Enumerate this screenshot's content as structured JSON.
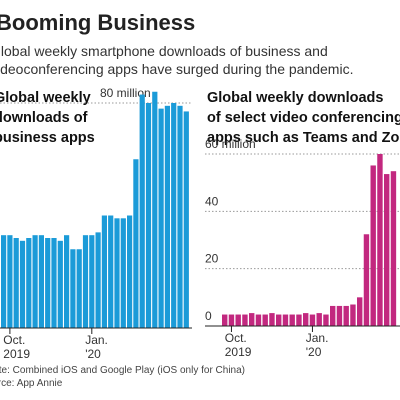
{
  "title": "Booming Business",
  "subtitle": [
    "Global weekly smartphone downloads of business and",
    "videoconferencing apps have surged during the pandemic."
  ],
  "note": "Note: Combined iOS and Google Play (iOS only for China)",
  "source": "Source: App Annie",
  "chart_data": [
    {
      "type": "bar",
      "title": [
        "Global weekly",
        "downloads of",
        "business apps"
      ],
      "color": "#1b9bd8",
      "categories": [
        null,
        "Oct.",
        null,
        null,
        null,
        null,
        null,
        null,
        null,
        null,
        null,
        null,
        null,
        null,
        "Jan.",
        null,
        null,
        null,
        null,
        null,
        null,
        null,
        null,
        null,
        null,
        null,
        null,
        null,
        null,
        null
      ],
      "category_years": [
        null,
        "2019",
        null,
        null,
        null,
        null,
        null,
        null,
        null,
        null,
        null,
        null,
        null,
        null,
        "'20",
        null,
        null,
        null,
        null,
        null,
        null,
        null,
        null,
        null,
        null,
        null,
        null,
        null,
        null,
        null
      ],
      "values": [
        33,
        33,
        32,
        31,
        32,
        33,
        33,
        32,
        32,
        31,
        33,
        28,
        28,
        33,
        33,
        34,
        40,
        40,
        39,
        39,
        40,
        60,
        83,
        80,
        84,
        78,
        79,
        80,
        79,
        77
      ],
      "ylim": [
        0,
        80
      ],
      "yticks": [
        {
          "value": 80,
          "label": "80 million"
        }
      ],
      "grid": true
    },
    {
      "type": "bar",
      "title": [
        "Global weekly downloads",
        "of select video conferencing",
        "apps such as Teams and Zoom"
      ],
      "color": "#c2287f",
      "categories": [
        null,
        "Oct.",
        null,
        null,
        null,
        null,
        null,
        null,
        null,
        null,
        null,
        null,
        null,
        "Jan.",
        null,
        null,
        null,
        null,
        null,
        null,
        null,
        null,
        null,
        null,
        null,
        null
      ],
      "category_years": [
        null,
        "2019",
        null,
        null,
        null,
        null,
        null,
        null,
        null,
        null,
        null,
        null,
        null,
        "'20",
        null,
        null,
        null,
        null,
        null,
        null,
        null,
        null,
        null,
        null,
        null,
        null
      ],
      "values": [
        4,
        4,
        4,
        4,
        4.5,
        4,
        4,
        4.5,
        4,
        4,
        4,
        4,
        4.5,
        4,
        4.5,
        4,
        7,
        7,
        7,
        7.5,
        10,
        32,
        56,
        60,
        53,
        54
      ],
      "ylim": [
        0,
        60
      ],
      "yticks": [
        0,
        20,
        40,
        {
          "value": 60,
          "label": "60 million"
        }
      ],
      "grid": true
    }
  ]
}
